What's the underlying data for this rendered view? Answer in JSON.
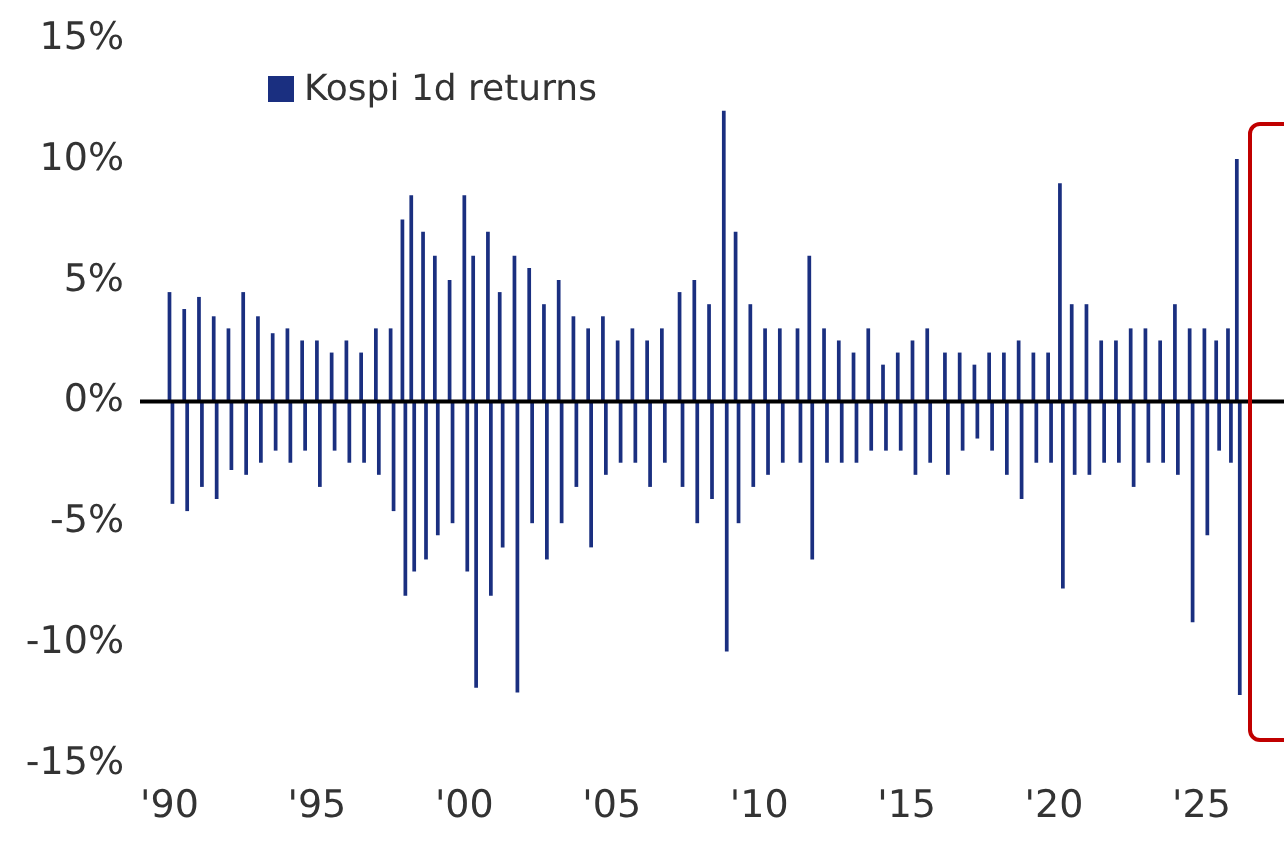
{
  "chart_data": {
    "type": "bar",
    "legend": "top left",
    "grid": false,
    "xlim": [
      1989,
      2027.8
    ],
    "xticks": [
      {
        "value": 1990,
        "label": "'90"
      },
      {
        "value": 1995,
        "label": "'95"
      },
      {
        "value": 2000,
        "label": "'00"
      },
      {
        "value": 2005,
        "label": "'05"
      },
      {
        "value": 2010,
        "label": "'10"
      },
      {
        "value": 2015,
        "label": "'15"
      },
      {
        "value": 2020,
        "label": "'20"
      },
      {
        "value": 2025,
        "label": "'25"
      }
    ],
    "ylim": [
      -15,
      15
    ],
    "yticks": [
      {
        "value": -15,
        "label": "-15%"
      },
      {
        "value": -10,
        "label": "-10%"
      },
      {
        "value": -5,
        "label": "-5%"
      },
      {
        "value": 0,
        "label": "0%"
      },
      {
        "value": 5,
        "label": "5%"
      },
      {
        "value": 10,
        "label": "10%"
      },
      {
        "value": 15,
        "label": "15%"
      }
    ],
    "ref_lines": [
      {
        "axis": "y",
        "value": 0,
        "color": "#000000"
      }
    ],
    "series": [
      {
        "name": "Kospi 1d returns",
        "color": "#1a2f80",
        "x": [
          1990.0,
          1990.1,
          1990.5,
          1990.6,
          1991.0,
          1991.1,
          1991.5,
          1991.6,
          1992.0,
          1992.1,
          1992.5,
          1992.6,
          1993.0,
          1993.1,
          1993.5,
          1993.6,
          1994.0,
          1994.1,
          1994.5,
          1994.6,
          1995.0,
          1995.1,
          1995.5,
          1995.6,
          1996.0,
          1996.1,
          1996.5,
          1996.6,
          1997.0,
          1997.1,
          1997.5,
          1997.6,
          1997.9,
          1998.0,
          1998.2,
          1998.3,
          1998.6,
          1998.7,
          1999.0,
          1999.1,
          1999.5,
          1999.6,
          2000.0,
          2000.1,
          2000.3,
          2000.4,
          2000.8,
          2000.9,
          2001.2,
          2001.3,
          2001.7,
          2001.8,
          2002.2,
          2002.3,
          2002.7,
          2002.8,
          2003.2,
          2003.3,
          2003.7,
          2003.8,
          2004.2,
          2004.3,
          2004.7,
          2004.8,
          2005.2,
          2005.3,
          2005.7,
          2005.8,
          2006.2,
          2006.3,
          2006.7,
          2006.8,
          2007.3,
          2007.4,
          2007.8,
          2007.9,
          2008.3,
          2008.4,
          2008.8,
          2008.9,
          2009.2,
          2009.3,
          2009.7,
          2009.8,
          2010.2,
          2010.3,
          2010.7,
          2010.8,
          2011.3,
          2011.4,
          2011.7,
          2011.8,
          2012.2,
          2012.3,
          2012.7,
          2012.8,
          2013.2,
          2013.3,
          2013.7,
          2013.8,
          2014.2,
          2014.3,
          2014.7,
          2014.8,
          2015.2,
          2015.3,
          2015.7,
          2015.8,
          2016.3,
          2016.4,
          2016.8,
          2016.9,
          2017.3,
          2017.4,
          2017.8,
          2017.9,
          2018.3,
          2018.4,
          2018.8,
          2018.9,
          2019.3,
          2019.4,
          2019.8,
          2019.9,
          2020.2,
          2020.3,
          2020.6,
          2020.7,
          2021.1,
          2021.2,
          2021.6,
          2021.7,
          2022.1,
          2022.2,
          2022.6,
          2022.7,
          2023.1,
          2023.2,
          2023.6,
          2023.7,
          2024.1,
          2024.2,
          2024.6,
          2024.7,
          2025.1,
          2025.2,
          2025.5,
          2025.6,
          2025.9,
          2026.0,
          2026.2,
          2026.3
        ],
        "values": [
          4.5,
          -4.2,
          3.8,
          -4.5,
          4.3,
          -3.5,
          3.5,
          -4.0,
          3.0,
          -2.8,
          4.5,
          -3.0,
          3.5,
          -2.5,
          2.8,
          -2.0,
          3.0,
          -2.5,
          2.5,
          -2.0,
          2.5,
          -3.5,
          2.0,
          -2.0,
          2.5,
          -2.5,
          2.0,
          -2.5,
          3.0,
          -3.0,
          3.0,
          -4.5,
          7.5,
          -8.0,
          8.5,
          -7.0,
          7.0,
          -6.5,
          6.0,
          -5.5,
          5.0,
          -5.0,
          8.5,
          -7.0,
          6.0,
          -11.8,
          7.0,
          -8.0,
          4.5,
          -6.0,
          6.0,
          -12.0,
          5.5,
          -5.0,
          4.0,
          -6.5,
          5.0,
          -5.0,
          3.5,
          -3.5,
          3.0,
          -6.0,
          3.5,
          -3.0,
          2.5,
          -2.5,
          3.0,
          -2.5,
          2.5,
          -3.5,
          3.0,
          -2.5,
          4.5,
          -3.5,
          5.0,
          -5.0,
          4.0,
          -4.0,
          12.0,
          -10.3,
          7.0,
          -5.0,
          4.0,
          -3.5,
          3.0,
          -3.0,
          3.0,
          -2.5,
          3.0,
          -2.5,
          6.0,
          -6.5,
          3.0,
          -2.5,
          2.5,
          -2.5,
          2.0,
          -2.5,
          3.0,
          -2.0,
          1.5,
          -2.0,
          2.0,
          -2.0,
          2.5,
          -3.0,
          3.0,
          -2.5,
          2.0,
          -3.0,
          2.0,
          -2.0,
          1.5,
          -1.5,
          2.0,
          -2.0,
          2.0,
          -3.0,
          2.5,
          -4.0,
          2.0,
          -2.5,
          2.0,
          -2.5,
          9.0,
          -7.7,
          4.0,
          -3.0,
          4.0,
          -3.0,
          2.5,
          -2.5,
          2.5,
          -2.5,
          3.0,
          -3.5,
          3.0,
          -2.5,
          2.5,
          -2.5,
          4.0,
          -3.0,
          3.0,
          -9.1,
          3.0,
          -5.5,
          2.5,
          -2.0,
          3.0,
          -2.5,
          10.0,
          -12.1
        ]
      }
    ]
  }
}
